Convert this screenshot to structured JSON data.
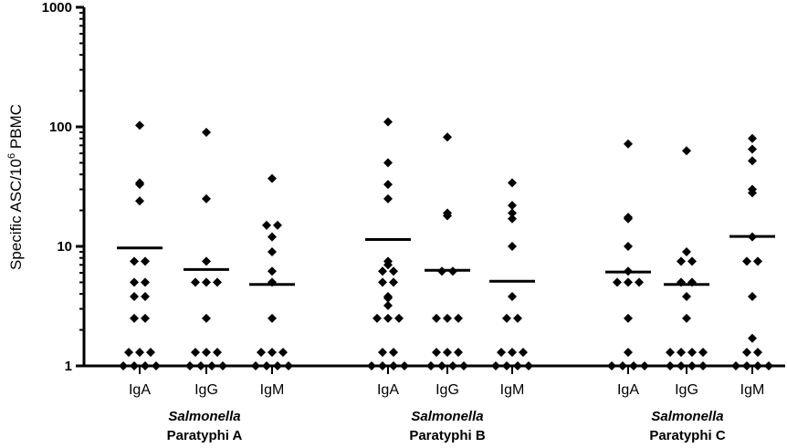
{
  "chart_data": {
    "type": "scatter",
    "yscale": "log",
    "ylim": [
      1,
      1000
    ],
    "ylabel_main": "Specific ASC/10",
    "ylabel_sup": "6",
    "ylabel_tail": " PBMC",
    "y_ticks": [
      {
        "value": 1,
        "label": "1"
      },
      {
        "value": 10,
        "label": "10"
      },
      {
        "value": 100,
        "label": "100"
      },
      {
        "value": 1000,
        "label": "1000"
      }
    ],
    "groups": [
      {
        "italic": "Salmonella",
        "plain": "Paratyphi A"
      },
      {
        "italic": "Salmonella",
        "plain": "Paratyphi B"
      },
      {
        "italic": "Salmonella",
        "plain": "Paratyphi C"
      }
    ],
    "series": [
      {
        "category": "IgA",
        "group": 0,
        "mean": 9.7,
        "values": [
          103,
          34,
          33,
          24,
          7.5,
          7.5,
          5,
          5,
          3.8,
          3.8,
          2.5,
          2.5,
          1.3,
          1.3,
          1.3,
          1,
          1,
          1,
          1
        ]
      },
      {
        "category": "IgG",
        "group": 0,
        "mean": 6.4,
        "values": [
          90,
          25,
          7.5,
          5,
          5,
          5,
          2.5,
          1.3,
          1.3,
          1.3,
          1,
          1,
          1,
          1
        ]
      },
      {
        "category": "IgM",
        "group": 0,
        "mean": 4.8,
        "values": [
          37,
          15,
          15,
          12,
          9,
          6.2,
          5,
          2.5,
          1.3,
          1.3,
          1.3,
          1,
          1,
          1,
          1
        ]
      },
      {
        "category": "IgA",
        "group": 1,
        "mean": 11.4,
        "values": [
          110,
          50,
          33,
          25,
          7.5,
          7,
          6.2,
          6.2,
          5,
          5,
          3.8,
          3.7,
          3.2,
          2.5,
          2.5,
          2.5,
          1.3,
          1.3,
          1,
          1,
          1,
          1
        ]
      },
      {
        "category": "IgG",
        "group": 1,
        "mean": 6.3,
        "values": [
          82,
          19,
          18,
          6.2,
          6.2,
          2.5,
          2.5,
          2.5,
          1.3,
          1.3,
          1.3,
          1,
          1,
          1,
          1
        ]
      },
      {
        "category": "IgM",
        "group": 1,
        "mean": 5.1,
        "values": [
          34,
          22,
          19,
          17,
          10,
          3.8,
          2.5,
          2.5,
          1.3,
          1.3,
          1.3,
          1,
          1,
          1,
          1
        ]
      },
      {
        "category": "IgA",
        "group": 2,
        "mean": 6.1,
        "values": [
          72,
          17.5,
          17,
          10,
          6.2,
          5,
          5,
          5,
          2.5,
          1.3,
          1,
          1,
          1,
          1
        ]
      },
      {
        "category": "IgG",
        "group": 2,
        "mean": 4.8,
        "values": [
          63,
          9,
          7.5,
          7.5,
          5,
          5,
          3.8,
          2.5,
          1.3,
          1.3,
          1.3,
          1.3,
          1,
          1,
          1,
          1
        ]
      },
      {
        "category": "IgM",
        "group": 2,
        "mean": 12.1,
        "values": [
          80,
          65,
          52,
          30,
          28,
          12,
          7.5,
          7.5,
          3.8,
          1.7,
          1.3,
          1.3,
          1,
          1,
          1,
          1
        ]
      }
    ]
  }
}
